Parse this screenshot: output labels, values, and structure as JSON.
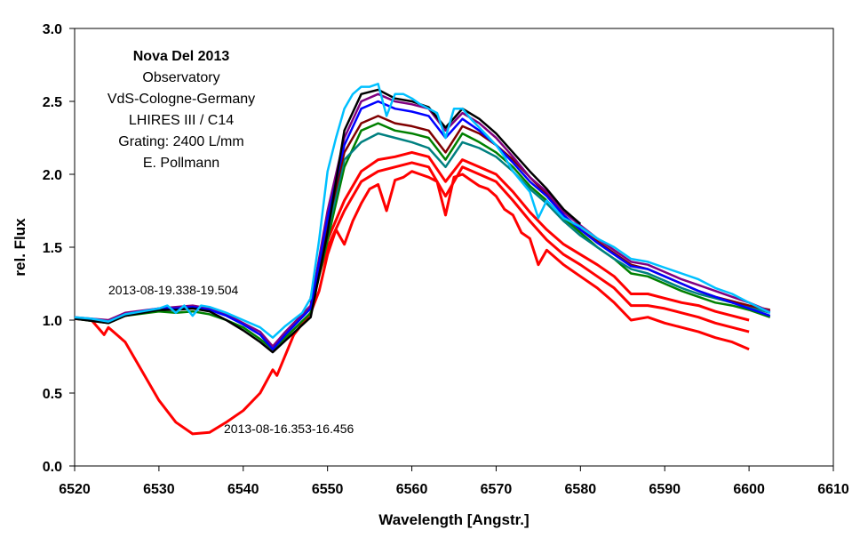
{
  "chart_data": {
    "type": "line",
    "xlabel": "Wavelength [Angstr.]",
    "ylabel": "rel. Flux",
    "xlim": [
      6520,
      6610
    ],
    "ylim": [
      0.0,
      3.0
    ],
    "x_ticks": [
      "6520",
      "6530",
      "6540",
      "6550",
      "6560",
      "6570",
      "6580",
      "6590",
      "6600",
      "6610"
    ],
    "y_ticks": [
      "0.0",
      "0.5",
      "1.0",
      "1.5",
      "2.0",
      "2.5",
      "3.0"
    ],
    "grid": false,
    "info_box": [
      "Nova Del 2013",
      "Observatory",
      "VdS-Cologne-Germany",
      "LHIRES III / C14",
      "Grating: 2400 L/mm",
      "E. Pollmann"
    ],
    "annotations": [
      "2013-08-19.338-19.504",
      "2013-08-16.353-16.456"
    ],
    "series": [
      {
        "color": "#ff0000",
        "x": [
          6520,
          6522,
          6523.5,
          6524,
          6526,
          6528,
          6530,
          6532,
          6534,
          6536,
          6538,
          6540,
          6542,
          6543.5,
          6544,
          6546,
          6548,
          6549,
          6550,
          6551,
          6552,
          6553,
          6554,
          6555,
          6556,
          6557,
          6558,
          6559,
          6560,
          6561,
          6562,
          6563,
          6564,
          6565,
          6566,
          6567,
          6568,
          6569,
          6570,
          6571,
          6572,
          6573,
          6574,
          6575,
          6576,
          6578,
          6580,
          6582,
          6584,
          6586,
          6588,
          6590,
          6592,
          6594,
          6596,
          6598,
          6600
        ],
        "y": [
          1.01,
          1.0,
          0.9,
          0.95,
          0.85,
          0.65,
          0.45,
          0.3,
          0.22,
          0.23,
          0.3,
          0.38,
          0.5,
          0.66,
          0.62,
          0.9,
          1.05,
          1.2,
          1.45,
          1.62,
          1.52,
          1.68,
          1.8,
          1.9,
          1.93,
          1.75,
          1.96,
          1.98,
          2.02,
          2.0,
          1.98,
          1.95,
          1.72,
          1.98,
          2.0,
          1.96,
          1.92,
          1.9,
          1.85,
          1.76,
          1.72,
          1.6,
          1.56,
          1.38,
          1.48,
          1.38,
          1.3,
          1.22,
          1.12,
          1.0,
          1.02,
          0.98,
          0.95,
          0.92,
          0.88,
          0.85,
          0.8
        ]
      },
      {
        "color": "#ff0000",
        "x": [
          6548,
          6550,
          6552,
          6554,
          6556,
          6558,
          6560,
          6562,
          6564,
          6566,
          6568,
          6570,
          6572,
          6574,
          6576,
          6578,
          6580,
          6582,
          6584,
          6586,
          6588,
          6590,
          6592,
          6594,
          6596,
          6598,
          6600
        ],
        "y": [
          1.12,
          1.5,
          1.75,
          1.95,
          2.02,
          2.05,
          2.08,
          2.05,
          1.85,
          2.05,
          2.0,
          1.95,
          1.82,
          1.68,
          1.55,
          1.45,
          1.38,
          1.3,
          1.22,
          1.1,
          1.1,
          1.08,
          1.05,
          1.02,
          0.98,
          0.95,
          0.92
        ]
      },
      {
        "color": "#ff0000",
        "x": [
          6548,
          6550,
          6552,
          6554,
          6556,
          6558,
          6560,
          6562,
          6564,
          6566,
          6568,
          6570,
          6572,
          6574,
          6576,
          6578,
          6580,
          6582,
          6584,
          6586,
          6588,
          6590,
          6592,
          6594,
          6596,
          6598,
          6600
        ],
        "y": [
          1.15,
          1.55,
          1.82,
          2.02,
          2.1,
          2.12,
          2.15,
          2.12,
          1.95,
          2.1,
          2.05,
          2.0,
          1.88,
          1.74,
          1.62,
          1.52,
          1.45,
          1.38,
          1.3,
          1.18,
          1.18,
          1.15,
          1.12,
          1.1,
          1.06,
          1.03,
          1.0
        ]
      },
      {
        "color": "#008000",
        "x": [
          6520,
          6524,
          6526,
          6530,
          6532,
          6534,
          6536,
          6538,
          6540,
          6542,
          6543.5,
          6545,
          6548,
          6550,
          6552,
          6554,
          6556,
          6558,
          6560,
          6562,
          6564,
          6566,
          6568,
          6570,
          6572,
          6574,
          6576,
          6578,
          6580,
          6582,
          6584,
          6586,
          6588,
          6590,
          6592,
          6594,
          6596,
          6598,
          6600,
          6602.5
        ],
        "y": [
          1.01,
          0.98,
          1.03,
          1.06,
          1.05,
          1.06,
          1.04,
          1.0,
          0.95,
          0.87,
          0.8,
          0.88,
          1.05,
          1.55,
          2.05,
          2.3,
          2.35,
          2.3,
          2.28,
          2.25,
          2.1,
          2.28,
          2.22,
          2.15,
          2.05,
          1.92,
          1.82,
          1.7,
          1.6,
          1.5,
          1.42,
          1.32,
          1.3,
          1.25,
          1.2,
          1.16,
          1.12,
          1.1,
          1.07,
          1.02
        ]
      },
      {
        "color": "#008080",
        "x": [
          6548,
          6550,
          6552,
          6554,
          6556,
          6558,
          6560,
          6562,
          6564,
          6566,
          6568,
          6570,
          6572,
          6574,
          6576,
          6578,
          6580,
          6582,
          6584,
          6586,
          6588,
          6590,
          6592,
          6594,
          6596,
          6598,
          6600,
          6602.5
        ],
        "y": [
          1.08,
          1.6,
          2.1,
          2.22,
          2.28,
          2.25,
          2.22,
          2.18,
          2.05,
          2.22,
          2.18,
          2.12,
          2.02,
          1.9,
          1.8,
          1.68,
          1.58,
          1.5,
          1.42,
          1.35,
          1.32,
          1.27,
          1.22,
          1.18,
          1.15,
          1.12,
          1.09,
          1.05
        ]
      },
      {
        "color": "#800000",
        "x": [
          6548,
          6550,
          6552,
          6554,
          6556,
          6558,
          6560,
          6562,
          6564,
          6566,
          6568,
          6570,
          6572,
          6574,
          6576,
          6578,
          6580,
          6582,
          6584,
          6586,
          6588,
          6590,
          6592,
          6594,
          6596,
          6598,
          6600,
          6602.5
        ],
        "y": [
          1.1,
          1.65,
          2.15,
          2.35,
          2.4,
          2.35,
          2.33,
          2.3,
          2.15,
          2.33,
          2.28,
          2.2,
          2.1,
          1.98,
          1.86,
          1.72,
          1.62,
          1.54,
          1.46,
          1.38,
          1.35,
          1.3,
          1.25,
          1.2,
          1.16,
          1.13,
          1.1,
          1.07
        ]
      },
      {
        "color": "#800080",
        "x": [
          6520,
          6524,
          6526,
          6530,
          6532,
          6534,
          6536,
          6538,
          6540,
          6542,
          6543.5,
          6545,
          6548,
          6550,
          6552,
          6554,
          6556,
          6558,
          6560,
          6562,
          6564,
          6566,
          6568,
          6570,
          6572,
          6574,
          6576,
          6578,
          6580,
          6582,
          6584,
          6586,
          6588,
          6590,
          6592,
          6594,
          6596,
          6598,
          6600,
          6602.5
        ],
        "y": [
          1.02,
          1.0,
          1.05,
          1.08,
          1.09,
          1.1,
          1.08,
          1.04,
          0.98,
          0.92,
          0.82,
          0.92,
          1.1,
          1.75,
          2.25,
          2.5,
          2.55,
          2.5,
          2.48,
          2.45,
          2.3,
          2.42,
          2.35,
          2.25,
          2.12,
          1.98,
          1.88,
          1.74,
          1.65,
          1.56,
          1.48,
          1.4,
          1.38,
          1.33,
          1.28,
          1.24,
          1.2,
          1.16,
          1.12,
          1.06
        ]
      },
      {
        "color": "#0000ff",
        "x": [
          6520,
          6524,
          6526,
          6530,
          6532,
          6534,
          6536,
          6538,
          6540,
          6542,
          6543.5,
          6545,
          6548,
          6550,
          6552,
          6554,
          6556,
          6558,
          6560,
          6562,
          6564,
          6566,
          6568,
          6570,
          6572,
          6574,
          6576,
          6578,
          6580,
          6582,
          6584,
          6586,
          6588,
          6590,
          6592,
          6594,
          6596,
          6598,
          6600,
          6602.5
        ],
        "y": [
          1.01,
          0.99,
          1.04,
          1.08,
          1.08,
          1.09,
          1.07,
          1.03,
          0.97,
          0.9,
          0.8,
          0.9,
          1.08,
          1.7,
          2.2,
          2.45,
          2.5,
          2.45,
          2.43,
          2.4,
          2.25,
          2.38,
          2.3,
          2.2,
          2.08,
          1.95,
          1.85,
          1.72,
          1.62,
          1.53,
          1.45,
          1.37,
          1.35,
          1.3,
          1.25,
          1.2,
          1.16,
          1.12,
          1.08,
          1.03
        ]
      },
      {
        "color": "#000000",
        "x": [
          6520,
          6524,
          6526,
          6530,
          6532,
          6534,
          6536,
          6538,
          6540,
          6542,
          6543.5,
          6545,
          6548,
          6550,
          6552,
          6554,
          6556,
          6558,
          6560,
          6562,
          6564,
          6566,
          6568,
          6570,
          6572,
          6574,
          6576,
          6578,
          6580
        ],
        "y": [
          1.01,
          0.98,
          1.03,
          1.07,
          1.07,
          1.08,
          1.06,
          1.0,
          0.93,
          0.85,
          0.78,
          0.86,
          1.02,
          1.6,
          2.3,
          2.55,
          2.58,
          2.52,
          2.5,
          2.46,
          2.32,
          2.45,
          2.38,
          2.28,
          2.15,
          2.02,
          1.9,
          1.76,
          1.66
        ]
      },
      {
        "color": "#00c0ff",
        "x": [
          6520,
          6522,
          6524,
          6526,
          6528,
          6530,
          6531,
          6532,
          6533,
          6534,
          6535,
          6536,
          6538,
          6540,
          6542,
          6543.5,
          6545,
          6547,
          6548,
          6549,
          6550,
          6551,
          6552,
          6553,
          6554,
          6555,
          6556,
          6557,
          6558,
          6559,
          6560,
          6561,
          6562,
          6563,
          6564,
          6565,
          6566,
          6567,
          6568,
          6569,
          6570,
          6571,
          6572,
          6573,
          6574,
          6575,
          6576,
          6578,
          6580,
          6582,
          6584,
          6586,
          6588,
          6590,
          6592,
          6594,
          6596,
          6598,
          6600,
          6602.5
        ],
        "y": [
          1.02,
          1.01,
          0.99,
          1.04,
          1.06,
          1.08,
          1.1,
          1.05,
          1.1,
          1.03,
          1.1,
          1.09,
          1.05,
          1.0,
          0.95,
          0.88,
          0.96,
          1.05,
          1.15,
          1.55,
          2.02,
          2.25,
          2.45,
          2.55,
          2.6,
          2.6,
          2.62,
          2.4,
          2.55,
          2.55,
          2.52,
          2.48,
          2.45,
          2.42,
          2.25,
          2.45,
          2.45,
          2.38,
          2.32,
          2.26,
          2.2,
          2.12,
          2.02,
          1.95,
          1.88,
          1.7,
          1.82,
          1.7,
          1.64,
          1.56,
          1.5,
          1.42,
          1.4,
          1.36,
          1.32,
          1.28,
          1.22,
          1.18,
          1.12,
          1.05
        ]
      }
    ]
  }
}
